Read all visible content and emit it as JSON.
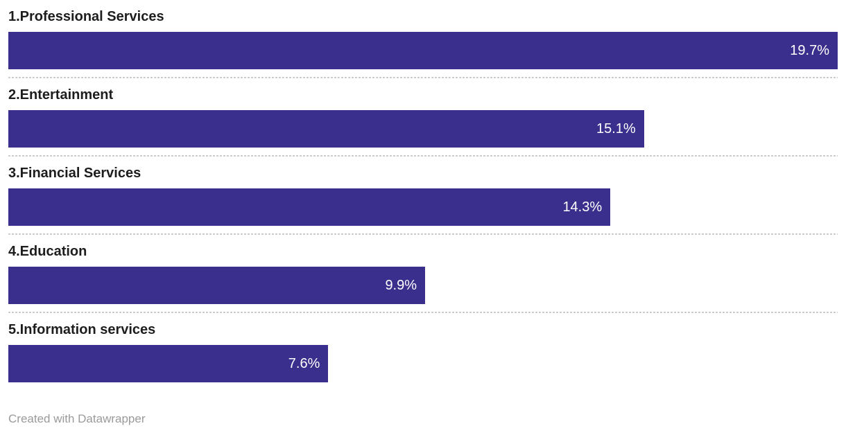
{
  "chart_data": {
    "type": "bar",
    "orientation": "horizontal",
    "title": "",
    "categories": [
      "1.Professional Services",
      "2.Entertainment",
      "3.Financial Services",
      "4.Education",
      "5.Information services"
    ],
    "values": [
      19.7,
      15.1,
      14.3,
      9.9,
      7.6
    ],
    "value_labels": [
      "19.7%",
      "15.1%",
      "14.3%",
      "9.9%",
      "7.6%"
    ],
    "value_suffix": "%",
    "xlim": [
      0,
      19.7
    ],
    "grid": false,
    "legend": "none",
    "colors": {
      "bar": "#3A2F8D",
      "category_label": "#1d1d1d",
      "value_label": "#ffffff",
      "separator": "#cccccc",
      "background": "#ffffff"
    }
  },
  "footer": {
    "attribution": "Created with Datawrapper"
  }
}
